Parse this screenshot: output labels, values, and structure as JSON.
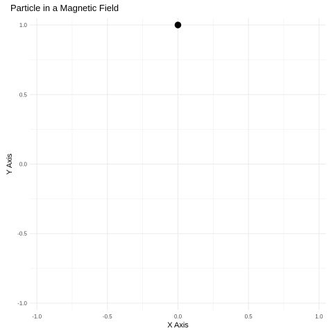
{
  "chart_data": {
    "type": "scatter",
    "title": "Particle in a Magnetic Field",
    "xlabel": "X Axis",
    "ylabel": "Y Axis",
    "xlim": [
      -1.05,
      1.05
    ],
    "ylim": [
      -1.05,
      1.05
    ],
    "x_ticks": [
      -1.0,
      -0.5,
      0.0,
      0.5,
      1.0
    ],
    "y_ticks": [
      -1.0,
      -0.5,
      0.0,
      0.5,
      1.0
    ],
    "x_tick_labels": [
      "-1.0",
      "-0.5",
      "0.0",
      "0.5",
      "1.0"
    ],
    "y_tick_labels": [
      "-1.0",
      "-0.5",
      "0.0",
      "0.5",
      "1.0"
    ],
    "grid": true,
    "legend": "none",
    "point_color": "#000000",
    "points": [
      {
        "x": 0.0,
        "y": 1.0
      }
    ]
  }
}
